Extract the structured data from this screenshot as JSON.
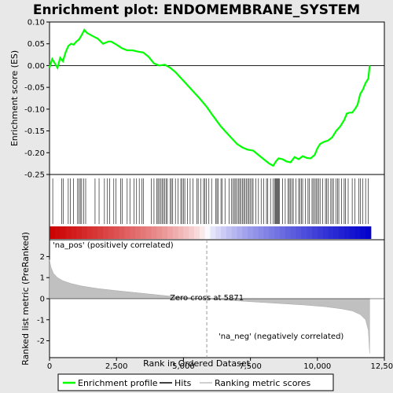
{
  "chart_data": {
    "type": "line",
    "title": "Enrichment plot: ENDOMEMBRANE_SYSTEM",
    "xlabel": "Rank in Ordered Dataset",
    "xlim": [
      0,
      12500
    ],
    "x_ticks": [
      0,
      2500,
      5000,
      7500,
      10000,
      12500
    ],
    "x_tick_labels": [
      "0",
      "2,500",
      "5,000",
      "7,500",
      "10,000",
      "12,500"
    ],
    "es_panel": {
      "ylabel": "Enrichment score (ES)",
      "ylim": [
        -0.25,
        0.1
      ],
      "y_ticks": [
        -0.25,
        -0.2,
        -0.15,
        -0.1,
        -0.05,
        0.0,
        0.05,
        0.1
      ],
      "y_tick_labels": [
        "-0.25",
        "-0.20",
        "-0.15",
        "-0.10",
        "-0.05",
        "0.00",
        "0.05",
        "0.10"
      ],
      "series": [
        {
          "name": "Enrichment profile",
          "color": "#00ff00",
          "x": [
            0,
            100,
            200,
            300,
            400,
            500,
            600,
            700,
            800,
            900,
            1000,
            1100,
            1200,
            1300,
            1400,
            1600,
            1800,
            2000,
            2200,
            2300,
            2500,
            2700,
            2900,
            3100,
            3300,
            3500,
            3700,
            3900,
            4100,
            4300,
            4500,
            4700,
            5000,
            5300,
            5600,
            5871,
            6100,
            6400,
            6700,
            7000,
            7200,
            7400,
            7600,
            7800,
            8000,
            8200,
            8350,
            8450,
            8550,
            8700,
            8850,
            9000,
            9150,
            9300,
            9450,
            9600,
            9750,
            9900,
            10000,
            10100,
            10250,
            10400,
            10550,
            10700,
            10850,
            11000,
            11100,
            11200,
            11300,
            11400,
            11500,
            11600,
            11700,
            11800,
            11900,
            11950
          ],
          "y": [
            -0.005,
            0.015,
            0.005,
            -0.005,
            0.018,
            0.01,
            0.03,
            0.045,
            0.05,
            0.048,
            0.055,
            0.06,
            0.07,
            0.082,
            0.075,
            0.068,
            0.062,
            0.05,
            0.055,
            0.055,
            0.048,
            0.04,
            0.035,
            0.035,
            0.032,
            0.03,
            0.02,
            0.005,
            0.0,
            0.002,
            -0.005,
            -0.015,
            -0.035,
            -0.055,
            -0.075,
            -0.095,
            -0.115,
            -0.14,
            -0.16,
            -0.18,
            -0.188,
            -0.193,
            -0.195,
            -0.205,
            -0.215,
            -0.225,
            -0.23,
            -0.22,
            -0.213,
            -0.215,
            -0.22,
            -0.222,
            -0.21,
            -0.215,
            -0.208,
            -0.212,
            -0.213,
            -0.205,
            -0.19,
            -0.18,
            -0.175,
            -0.172,
            -0.165,
            -0.15,
            -0.14,
            -0.125,
            -0.11,
            -0.108,
            -0.108,
            -0.1,
            -0.09,
            -0.065,
            -0.055,
            -0.04,
            -0.03,
            0.0
          ]
        }
      ],
      "zero_line": 0.0
    },
    "hits_panel": {
      "legend_name": "Hits",
      "hit_ranks": [
        120,
        450,
        520,
        700,
        780,
        900,
        1050,
        1100,
        1150,
        1200,
        1280,
        1350,
        1700,
        1850,
        2050,
        2150,
        2250,
        2400,
        2480,
        2650,
        2720,
        2900,
        3000,
        3150,
        3250,
        3350,
        3450,
        3500,
        3800,
        3900,
        4000,
        4050,
        4100,
        4150,
        4200,
        4250,
        4300,
        4350,
        4400,
        4500,
        4550,
        4600,
        4700,
        4800,
        4900,
        4950,
        5000,
        5050,
        5150,
        5250,
        5350,
        5500,
        5550,
        5650,
        5750,
        5800,
        5850,
        5950,
        6050,
        6200,
        6250,
        6300,
        6400,
        6450,
        6550,
        6700,
        6800,
        6850,
        6900,
        6950,
        7000,
        7050,
        7100,
        7150,
        7200,
        7250,
        7300,
        7350,
        7400,
        7450,
        7500,
        7550,
        7600,
        7700,
        7800,
        7900,
        8000,
        8100,
        8150,
        8250,
        8350,
        8400,
        8430,
        8460,
        8490,
        8520,
        8550,
        8580,
        8700,
        8800,
        8900,
        8950,
        9000,
        9050,
        9100,
        9200,
        9300,
        9350,
        9400,
        9450,
        9550,
        9650,
        9700,
        9800,
        9850,
        9900,
        9950,
        10000,
        10050,
        10100,
        10200,
        10300,
        10350,
        10400,
        10500,
        10550,
        10600,
        10700,
        10750,
        10800,
        10900,
        11000,
        11050,
        11150,
        11300,
        11400,
        11550,
        11600,
        11700,
        11800,
        11900
      ]
    },
    "rank_panel": {
      "ylabel": "Ranked list metric (PreRanked)",
      "legend_name": "Ranking metric scores",
      "ylim": [
        -2.8,
        2.8
      ],
      "y_ticks": [
        -2,
        -1,
        0,
        1,
        2
      ],
      "y_tick_labels": [
        "-2",
        "-1",
        "0",
        "1",
        "2"
      ],
      "x": [
        0,
        50,
        150,
        300,
        500,
        800,
        1200,
        1800,
        2500,
        3500,
        4500,
        5300,
        5871,
        6500,
        7500,
        8500,
        9500,
        10300,
        10900,
        11300,
        11600,
        11800,
        11900,
        11950
      ],
      "values": [
        1.85,
        1.5,
        1.2,
        1.0,
        0.85,
        0.72,
        0.6,
        0.48,
        0.38,
        0.25,
        0.12,
        0.04,
        0.0,
        -0.06,
        -0.14,
        -0.22,
        -0.3,
        -0.38,
        -0.48,
        -0.58,
        -0.75,
        -1.0,
        -1.5,
        -2.6
      ],
      "zero_cross_label": "Zero cross at 5871",
      "zero_cross_rank": 5871,
      "pos_label": "'na_pos' (positively correlated)",
      "neg_label": "'na_neg' (negatively correlated)",
      "pos_color": "#cc0000",
      "neg_color": "#0000cc"
    },
    "legend": {
      "placement": "bottom",
      "entries": [
        "Enrichment profile",
        "Hits",
        "Ranking metric scores"
      ]
    }
  }
}
